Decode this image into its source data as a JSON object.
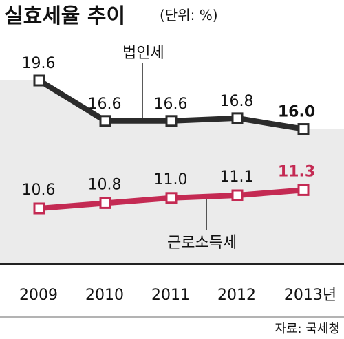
{
  "header": {
    "title": "실효세율 추이",
    "unit": "(단위: %)"
  },
  "source": "자료: 국세청",
  "colors": {
    "corporate": "#2b2b2b",
    "income": "#c42a53",
    "area": "#ebebeb",
    "axis": "#222222",
    "rule": "#9a9a9a"
  },
  "chart_data": {
    "type": "line",
    "x": [
      "2009",
      "2010",
      "2011",
      "2012",
      "2013"
    ],
    "x_suffix_last": "년",
    "series": [
      {
        "name": "법인세",
        "values": [
          19.6,
          16.6,
          16.6,
          16.8,
          16.0
        ],
        "labels": [
          "19.6",
          "16.6",
          "16.6",
          "16.8",
          "16.0"
        ]
      },
      {
        "name": "근로소득세",
        "values": [
          10.6,
          10.8,
          11.0,
          11.1,
          11.3
        ],
        "labels": [
          "10.6",
          "10.8",
          "11.0",
          "11.1",
          "11.3"
        ]
      }
    ],
    "shaded_area_under": "법인세",
    "ylim": [
      6,
      22
    ],
    "grid": false
  }
}
